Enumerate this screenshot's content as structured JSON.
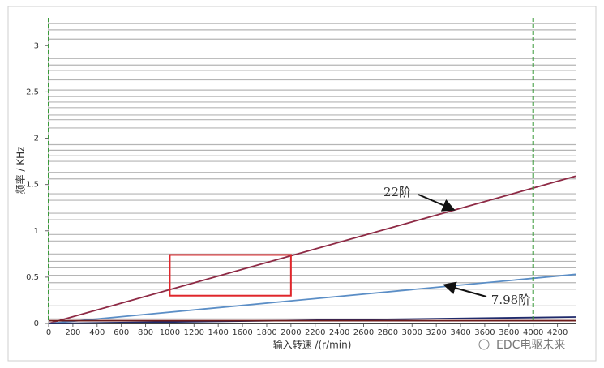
{
  "chart_data": {
    "type": "line",
    "xlabel": "输入转速 /(r/min)",
    "ylabel": "频率 / KHz",
    "x": [
      0,
      4350
    ],
    "series": [
      {
        "name": "22阶",
        "color": "#8e2a45",
        "values": [
          0,
          1.59
        ]
      },
      {
        "name": "7.98阶",
        "color": "#5b8ec6",
        "values": [
          0,
          0.53
        ]
      },
      {
        "color": "#1f2a6b",
        "values": [
          0,
          0.07
        ]
      },
      {
        "color": "#6e1c1c",
        "values": [
          0.03,
          0.03
        ]
      }
    ],
    "modes": [
      3.24,
      3.17,
      3.07,
      2.86,
      2.79,
      2.73,
      2.63,
      2.52,
      2.45,
      2.39,
      2.33,
      2.25,
      2.2,
      2.11,
      1.93,
      1.87,
      1.81,
      1.75,
      1.63,
      1.56,
      1.4,
      1.33,
      1.19,
      1.12,
      0.96,
      0.89,
      0.75,
      0.67,
      0.6,
      0.52,
      0.44,
      0.37,
      0.19,
      0.05
    ],
    "mode_color": "#b5b5b5",
    "markers": [
      0,
      4000
    ],
    "marker_color": "#3a9a3a",
    "highlight": {
      "x": [
        1000,
        2000
      ],
      "y": [
        0.3,
        0.74
      ],
      "color": "#e0262b"
    },
    "xlim": [
      0,
      4350
    ],
    "ylim": [
      0,
      3.3
    ],
    "xticks": [
      0,
      200,
      400,
      600,
      800,
      1000,
      1200,
      1400,
      1600,
      1800,
      2000,
      2200,
      2400,
      2600,
      2800,
      3000,
      3200,
      3400,
      3600,
      3800,
      4000,
      4200
    ],
    "yticks": [
      0,
      0.5,
      1,
      1.5,
      2,
      2.5,
      3
    ],
    "watermark": "EDC电驱未来"
  }
}
